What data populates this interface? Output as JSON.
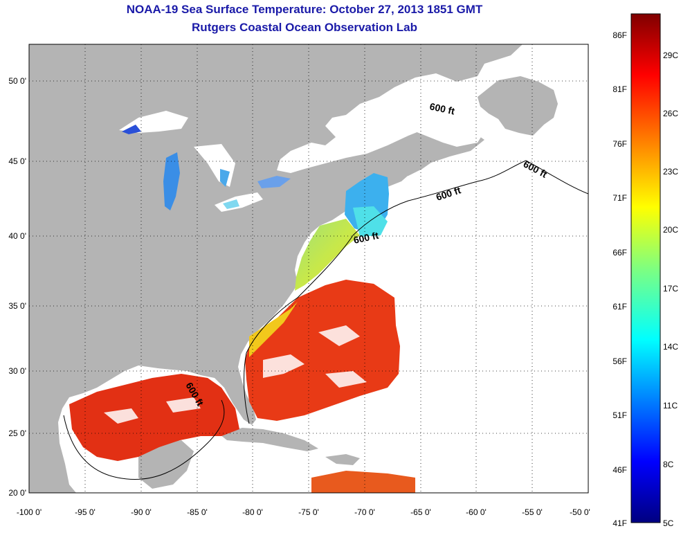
{
  "title": "NOAA-19 Sea Surface Temperature:  October 27, 2013 1851 GMT",
  "subtitle": "Rutgers Coastal Ocean Observation Lab",
  "map": {
    "lon_ticks": [
      "-100 0'",
      "-95 0'",
      "-90 0'",
      "-85 0'",
      "-80 0'",
      "-75 0'",
      "-70 0'",
      "-65 0'",
      "-60 0'",
      "-55 0'",
      "-50 0'"
    ],
    "lat_ticks": [
      "50 0'",
      "45 0'",
      "40 0'",
      "35 0'",
      "30 0'",
      "25 0'",
      "20 0'"
    ],
    "isobath_label": "600 ft",
    "land_color": "#b4b4b4",
    "ocean_color": "#ffffff"
  },
  "colorbar": {
    "fahrenheit_labels": [
      "86F",
      "81F",
      "76F",
      "71F",
      "66F",
      "61F",
      "56F",
      "51F",
      "46F",
      "41F"
    ],
    "celsius_labels": [
      "29C",
      "26C",
      "23C",
      "20C",
      "17C",
      "14C",
      "11C",
      "8C",
      "5C"
    ]
  }
}
